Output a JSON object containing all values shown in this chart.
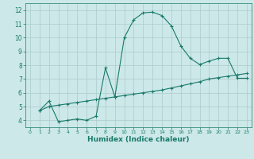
{
  "xlabel": "Humidex (Indice chaleur)",
  "ylabel": "",
  "bg_color": "#cce8e8",
  "grid_color": "#aacccc",
  "line_color": "#1a7a6a",
  "xlim": [
    -0.5,
    23.5
  ],
  "ylim": [
    3.5,
    12.5
  ],
  "xticks": [
    0,
    1,
    2,
    3,
    4,
    5,
    6,
    7,
    8,
    9,
    10,
    11,
    12,
    13,
    14,
    15,
    16,
    17,
    18,
    19,
    20,
    21,
    22,
    23
  ],
  "yticks": [
    4,
    5,
    6,
    7,
    8,
    9,
    10,
    11,
    12
  ],
  "line1_x": [
    1,
    2,
    3,
    4,
    5,
    6,
    7,
    8,
    9,
    10,
    11,
    12,
    13,
    14,
    15,
    16,
    17,
    18,
    19,
    20,
    21,
    22,
    23
  ],
  "line1_y": [
    4.7,
    5.4,
    3.9,
    4.0,
    4.1,
    4.0,
    4.3,
    7.8,
    5.7,
    10.0,
    11.3,
    11.8,
    11.85,
    11.6,
    10.85,
    9.4,
    8.5,
    8.05,
    8.3,
    8.5,
    8.5,
    7.05,
    7.05
  ],
  "line2_x": [
    1,
    2,
    3,
    4,
    5,
    6,
    7,
    8,
    9,
    10,
    11,
    12,
    13,
    14,
    15,
    16,
    17,
    18,
    19,
    20,
    21,
    22,
    23
  ],
  "line2_y": [
    4.7,
    5.0,
    5.1,
    5.2,
    5.3,
    5.4,
    5.5,
    5.6,
    5.7,
    5.8,
    5.9,
    6.0,
    6.1,
    6.2,
    6.35,
    6.5,
    6.65,
    6.8,
    7.0,
    7.1,
    7.2,
    7.3,
    7.4
  ]
}
